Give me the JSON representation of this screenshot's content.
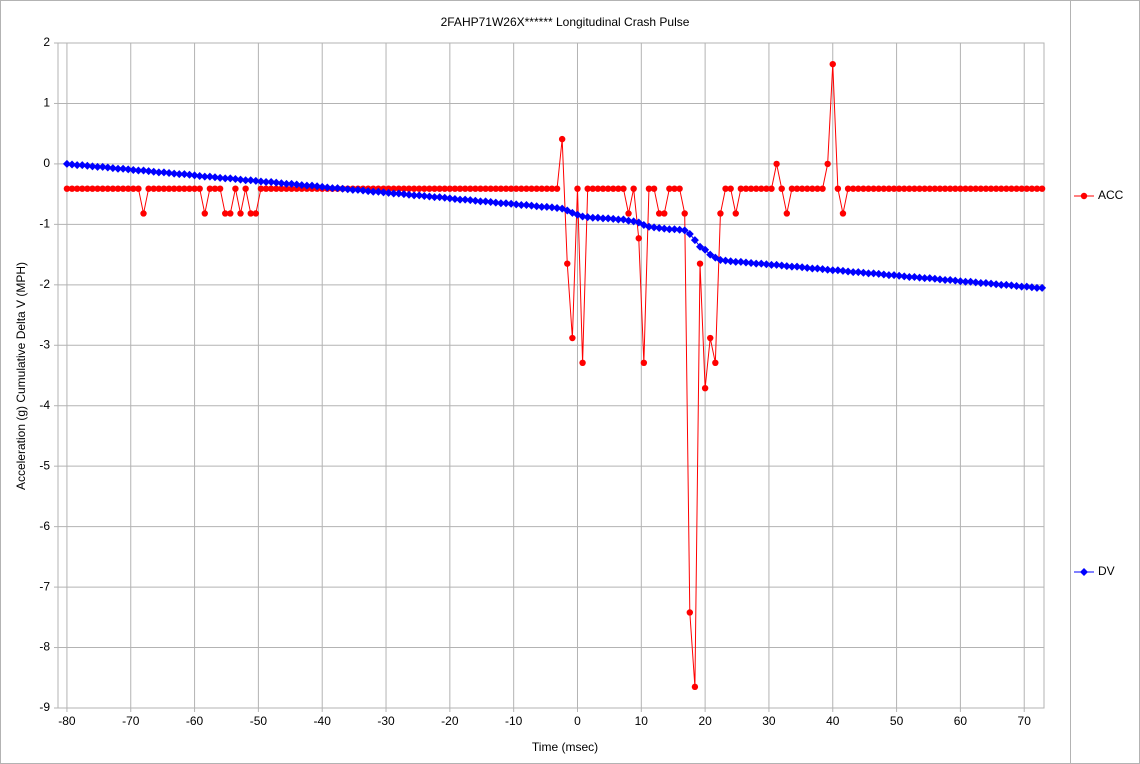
{
  "chart_data": {
    "type": "line",
    "title": "2FAHP71W26X******  Longitudinal Crash Pulse",
    "xlabel": "Time (msec)",
    "ylabel": "Acceleration (g)   Cumulative Delta V (MPH)",
    "xlim": [
      -81.4,
      73.1
    ],
    "ylim": [
      -9,
      2
    ],
    "xticks": [
      -80,
      -70,
      -60,
      -50,
      -40,
      -30,
      -20,
      -10,
      0,
      10,
      20,
      30,
      40,
      50,
      60,
      70
    ],
    "yticks": [
      -9,
      -8,
      -7,
      -6,
      -5,
      -4,
      -3,
      -2,
      -1,
      0,
      1,
      2
    ],
    "grid": true,
    "legend": "right",
    "x": [
      -80,
      -79.2,
      -78.4,
      -77.6,
      -76.8,
      -76,
      -75.2,
      -74.4,
      -73.6,
      -72.8,
      -72,
      -71.2,
      -70.4,
      -69.6,
      -68.8,
      -68,
      -67.2,
      -66.4,
      -65.6,
      -64.8,
      -64,
      -63.2,
      -62.4,
      -61.6,
      -60.8,
      -60,
      -59.2,
      -58.4,
      -57.6,
      -56.8,
      -56,
      -55.2,
      -54.4,
      -53.6,
      -52.8,
      -52,
      -51.2,
      -50.4,
      -49.6,
      -48.8,
      -48,
      -47.2,
      -46.4,
      -45.6,
      -44.8,
      -44,
      -43.2,
      -42.4,
      -41.6,
      -40.8,
      -40,
      -39.2,
      -38.4,
      -37.6,
      -36.8,
      -36,
      -35.2,
      -34.4,
      -33.6,
      -32.8,
      -32,
      -31.2,
      -30.4,
      -29.6,
      -28.8,
      -28,
      -27.2,
      -26.4,
      -25.6,
      -24.8,
      -24,
      -23.2,
      -22.4,
      -21.6,
      -20.8,
      -20,
      -19.2,
      -18.4,
      -17.6,
      -16.8,
      -16,
      -15.2,
      -14.4,
      -13.6,
      -12.8,
      -12,
      -11.2,
      -10.4,
      -9.6,
      -8.8,
      -8,
      -7.2,
      -6.4,
      -5.6,
      -4.8,
      -4,
      -3.2,
      -2.4,
      -1.6,
      -0.8,
      0,
      0.8,
      1.6,
      2.4,
      3.2,
      4,
      4.8,
      5.6,
      6.4,
      7.2,
      8,
      8.8,
      9.6,
      10.4,
      11.2,
      12,
      12.8,
      13.6,
      14.4,
      15.2,
      16,
      16.8,
      17.6,
      18.4,
      19.2,
      20,
      20.8,
      21.6,
      22.4,
      23.2,
      24,
      24.8,
      25.6,
      26.4,
      27.2,
      28,
      28.8,
      29.6,
      30.4,
      31.2,
      32,
      32.8,
      33.6,
      34.4,
      35.2,
      36,
      36.8,
      37.6,
      38.4,
      39.2,
      40,
      40.8,
      41.6,
      42.4,
      43.2,
      44,
      44.8,
      45.6,
      46.4,
      47.2,
      48,
      48.8,
      49.6,
      50.4,
      51.2,
      52,
      52.8,
      53.6,
      54.4,
      55.2,
      56,
      56.8,
      57.6,
      58.4,
      59.2,
      60,
      60.8,
      61.6,
      62.4,
      63.2,
      64,
      64.8,
      65.6,
      66.4,
      67.2,
      68,
      68.8,
      69.6,
      70.4,
      71.2,
      72,
      72.8
    ],
    "series": [
      {
        "name": "ACC",
        "color": "#ff0000",
        "marker": "circle",
        "values": [
          -0.41,
          -0.41,
          -0.41,
          -0.41,
          -0.41,
          -0.41,
          -0.41,
          -0.41,
          -0.41,
          -0.41,
          -0.41,
          -0.41,
          -0.41,
          -0.41,
          -0.41,
          -0.82,
          -0.41,
          -0.41,
          -0.41,
          -0.41,
          -0.41,
          -0.41,
          -0.41,
          -0.41,
          -0.41,
          -0.41,
          -0.41,
          -0.82,
          -0.41,
          -0.41,
          -0.41,
          -0.82,
          -0.82,
          -0.41,
          -0.82,
          -0.41,
          -0.82,
          -0.82,
          -0.41,
          -0.41,
          -0.41,
          -0.41,
          -0.41,
          -0.41,
          -0.41,
          -0.41,
          -0.41,
          -0.41,
          -0.41,
          -0.41,
          -0.41,
          -0.41,
          -0.41,
          -0.41,
          -0.41,
          -0.41,
          -0.41,
          -0.41,
          -0.41,
          -0.41,
          -0.41,
          -0.41,
          -0.41,
          -0.41,
          -0.41,
          -0.41,
          -0.41,
          -0.41,
          -0.41,
          -0.41,
          -0.41,
          -0.41,
          -0.41,
          -0.41,
          -0.41,
          -0.41,
          -0.41,
          -0.41,
          -0.41,
          -0.41,
          -0.41,
          -0.41,
          -0.41,
          -0.41,
          -0.41,
          -0.41,
          -0.41,
          -0.41,
          -0.41,
          -0.41,
          -0.41,
          -0.41,
          -0.41,
          -0.41,
          -0.41,
          -0.41,
          -0.41,
          0.41,
          -1.65,
          -2.88,
          -0.41,
          -3.29,
          -0.41,
          -0.41,
          -0.41,
          -0.41,
          -0.41,
          -0.41,
          -0.41,
          -0.41,
          -0.82,
          -0.41,
          -1.23,
          -3.29,
          -0.41,
          -0.41,
          -0.82,
          -0.82,
          -0.41,
          -0.41,
          -0.41,
          -0.82,
          -7.42,
          -8.65,
          -1.65,
          -3.71,
          -2.88,
          -3.29,
          -0.82,
          -0.41,
          -0.41,
          -0.82,
          -0.41,
          -0.41,
          -0.41,
          -0.41,
          -0.41,
          -0.41,
          -0.41,
          0,
          -0.41,
          -0.82,
          -0.41,
          -0.41,
          -0.41,
          -0.41,
          -0.41,
          -0.41,
          -0.41,
          0,
          1.65,
          -0.41,
          -0.82,
          -0.41,
          -0.41,
          -0.41,
          -0.41,
          -0.41,
          -0.41,
          -0.41,
          -0.41,
          -0.41,
          -0.41,
          -0.41,
          -0.41,
          -0.41,
          -0.41,
          -0.41,
          -0.41,
          -0.41,
          -0.41,
          -0.41,
          -0.41,
          -0.41,
          -0.41,
          -0.41,
          -0.41,
          -0.41,
          -0.41,
          -0.41,
          -0.41,
          -0.41,
          -0.41,
          -0.41,
          -0.41,
          -0.41,
          -0.41,
          -0.41,
          -0.41,
          -0.41,
          -0.41,
          -0.41
        ]
      },
      {
        "name": "DV",
        "color": "#0000ff",
        "marker": "diamond",
        "values": [
          0,
          -0.01,
          -0.02,
          -0.02,
          -0.03,
          -0.04,
          -0.05,
          -0.05,
          -0.06,
          -0.07,
          -0.08,
          -0.08,
          -0.09,
          -0.1,
          -0.11,
          -0.11,
          -0.12,
          -0.13,
          -0.14,
          -0.14,
          -0.15,
          -0.16,
          -0.17,
          -0.17,
          -0.18,
          -0.19,
          -0.2,
          -0.21,
          -0.21,
          -0.22,
          -0.23,
          -0.24,
          -0.24,
          -0.25,
          -0.26,
          -0.27,
          -0.27,
          -0.28,
          -0.29,
          -0.3,
          -0.3,
          -0.31,
          -0.32,
          -0.33,
          -0.33,
          -0.34,
          -0.35,
          -0.36,
          -0.36,
          -0.37,
          -0.38,
          -0.39,
          -0.4,
          -0.4,
          -0.41,
          -0.42,
          -0.43,
          -0.43,
          -0.44,
          -0.45,
          -0.46,
          -0.46,
          -0.47,
          -0.48,
          -0.49,
          -0.49,
          -0.5,
          -0.51,
          -0.52,
          -0.52,
          -0.53,
          -0.54,
          -0.55,
          -0.55,
          -0.56,
          -0.57,
          -0.58,
          -0.59,
          -0.59,
          -0.6,
          -0.61,
          -0.62,
          -0.62,
          -0.63,
          -0.64,
          -0.65,
          -0.65,
          -0.66,
          -0.67,
          -0.68,
          -0.68,
          -0.69,
          -0.7,
          -0.71,
          -0.71,
          -0.72,
          -0.73,
          -0.74,
          -0.77,
          -0.81,
          -0.84,
          -0.87,
          -0.88,
          -0.89,
          -0.89,
          -0.9,
          -0.9,
          -0.91,
          -0.92,
          -0.92,
          -0.94,
          -0.95,
          -0.97,
          -1.01,
          -1.04,
          -1.05,
          -1.06,
          -1.07,
          -1.08,
          -1.08,
          -1.09,
          -1.1,
          -1.16,
          -1.26,
          -1.37,
          -1.42,
          -1.5,
          -1.55,
          -1.59,
          -1.6,
          -1.61,
          -1.62,
          -1.62,
          -1.63,
          -1.64,
          -1.65,
          -1.65,
          -1.66,
          -1.67,
          -1.67,
          -1.68,
          -1.69,
          -1.7,
          -1.7,
          -1.71,
          -1.72,
          -1.73,
          -1.73,
          -1.74,
          -1.75,
          -1.76,
          -1.76,
          -1.77,
          -1.78,
          -1.79,
          -1.79,
          -1.8,
          -1.81,
          -1.81,
          -1.82,
          -1.83,
          -1.84,
          -1.84,
          -1.85,
          -1.86,
          -1.87,
          -1.87,
          -1.88,
          -1.89,
          -1.89,
          -1.9,
          -1.91,
          -1.92,
          -1.92,
          -1.93,
          -1.94,
          -1.95,
          -1.95,
          -1.96,
          -1.97,
          -1.97,
          -1.98,
          -1.99,
          -2,
          -2,
          -2.01,
          -2.02,
          -2.03,
          -2.03,
          -2.04,
          -2.05,
          -2.05
        ]
      }
    ]
  }
}
